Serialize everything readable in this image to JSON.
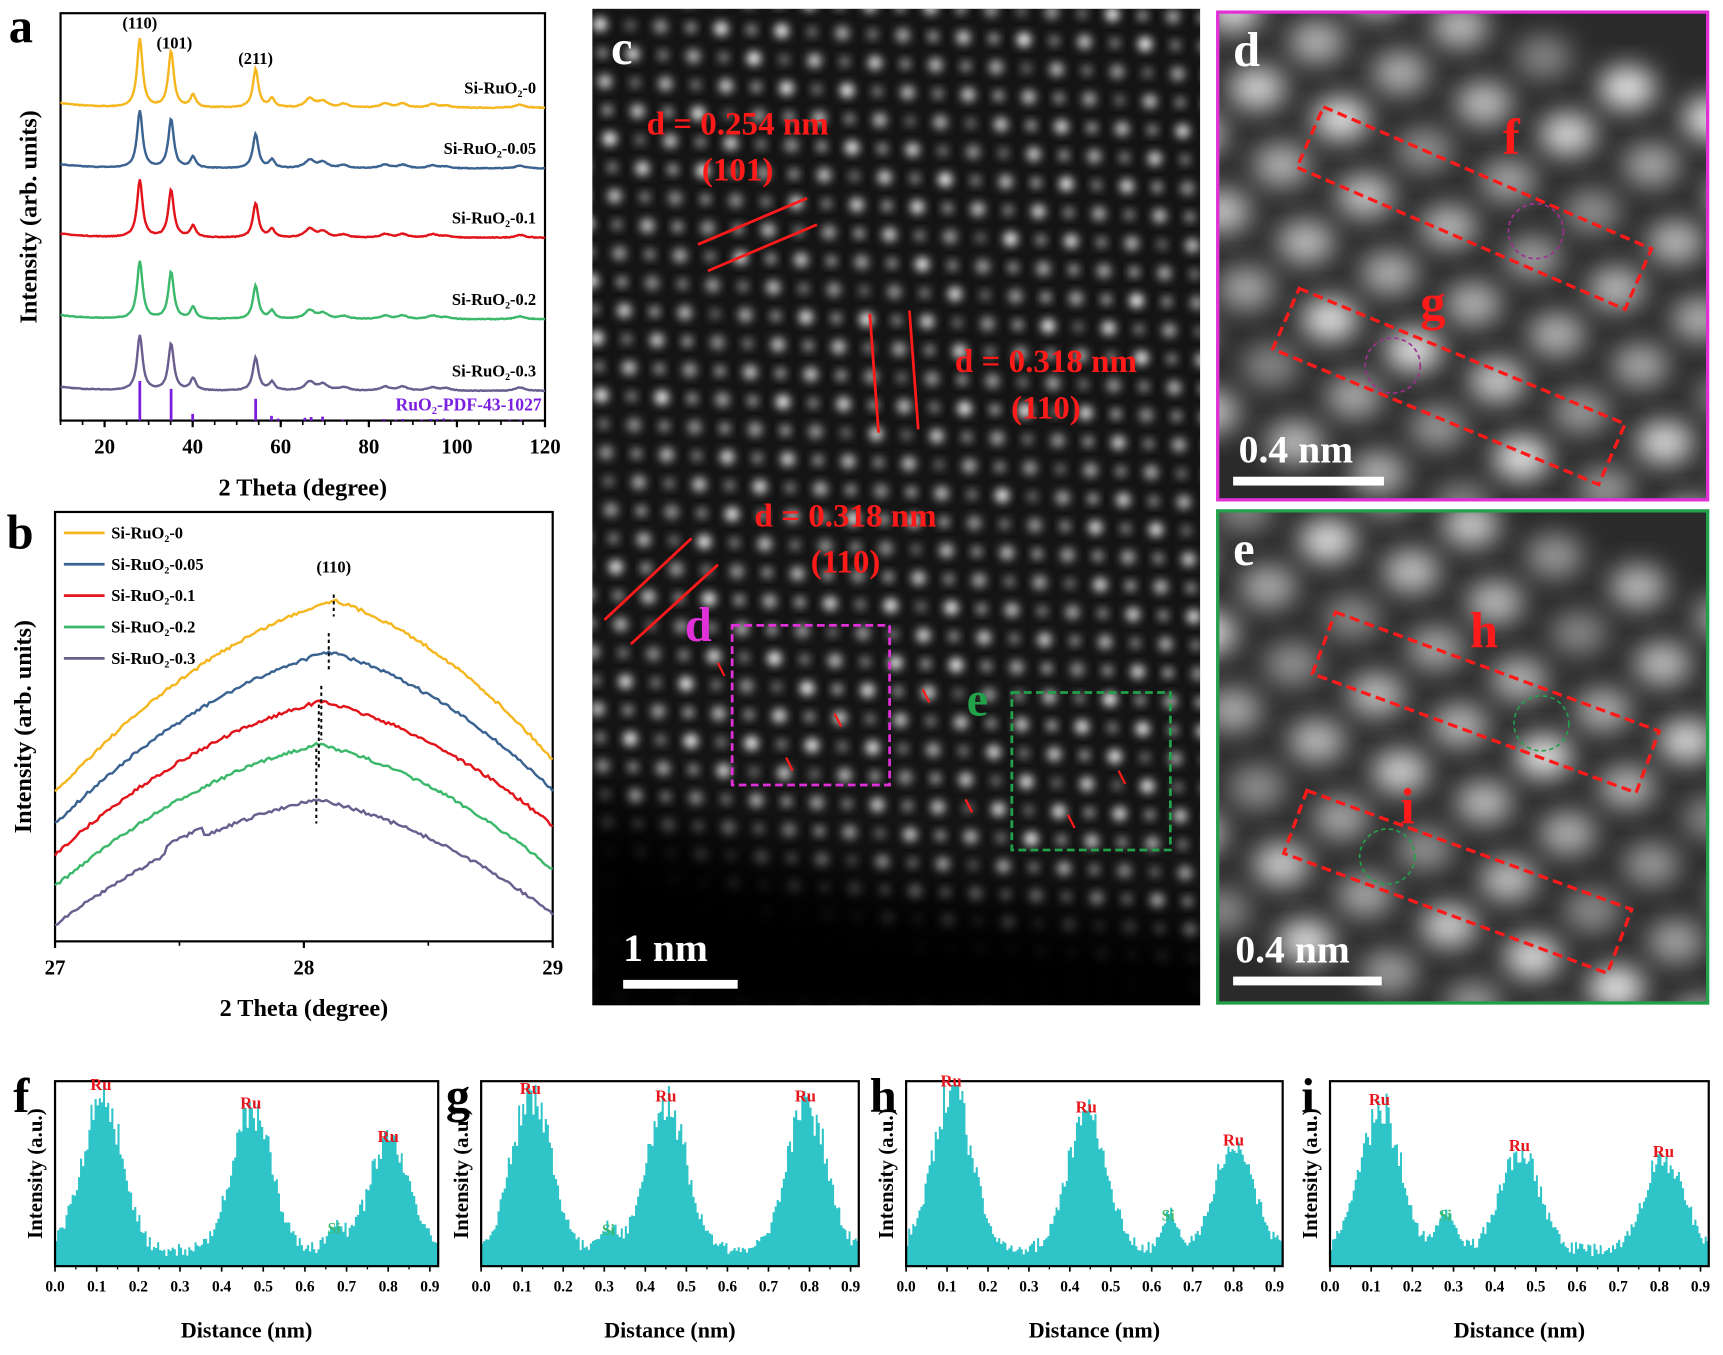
{
  "panels": {
    "a": "a",
    "b": "b",
    "c": "c",
    "d": "d",
    "e": "e",
    "f": "f",
    "g": "g",
    "h": "h",
    "i": "i"
  },
  "colors": {
    "Si-RuO2-0": "#f5b71f",
    "Si-RuO2-0.05": "#3b6391",
    "Si-RuO2-0.1": "#e2141b",
    "Si-RuO2-0.2": "#3cb86b",
    "Si-RuO2-0.3": "#6a5e8f",
    "pdf": "#7a1fe0",
    "profile": "#2ec4c8",
    "ru_label": "#e8141b",
    "si_label": "#3cb86b",
    "box_d": "#e030d8",
    "box_e": "#22a04a",
    "annot": "#ff1a1a"
  },
  "chart_data": [
    {
      "id": "a",
      "type": "line",
      "xlabel": "2 Theta (degree)",
      "ylabel": "Intensity (arb. units)",
      "xlim": [
        10,
        120
      ],
      "xticks": [
        "20",
        "40",
        "60",
        "80",
        "100",
        "120"
      ],
      "peak_labels": [
        {
          "text": "(110)",
          "x": 28.0
        },
        {
          "text": "(101)",
          "x": 35.1
        },
        {
          "text": "(211)",
          "x": 54.3
        }
      ],
      "reference": {
        "name": "RuO₂-PDF-43-1027",
        "sticks": [
          [
            28.0,
            1.0
          ],
          [
            35.1,
            0.8
          ],
          [
            40.0,
            0.17
          ],
          [
            54.3,
            0.55
          ],
          [
            57.9,
            0.12
          ],
          [
            59.4,
            0.05
          ],
          [
            65.5,
            0.07
          ],
          [
            66.9,
            0.09
          ],
          [
            69.5,
            0.1
          ],
          [
            74.0,
            0.03
          ],
          [
            83.4,
            0.04
          ],
          [
            86.1,
            0.03
          ],
          [
            87.7,
            0.04
          ],
          [
            92.0,
            0.03
          ],
          [
            94.0,
            0.04
          ],
          [
            95.5,
            0.04
          ],
          [
            97.0,
            0.05
          ],
          [
            99.0,
            0.02
          ],
          [
            112.0,
            0.02
          ],
          [
            114.5,
            0.03
          ]
        ]
      },
      "series": [
        {
          "name": "Si-RuO₂-0",
          "peaks": [
            [
              28.0,
              1.0
            ],
            [
              35.1,
              0.82
            ],
            [
              40.1,
              0.18
            ],
            [
              54.3,
              0.56
            ],
            [
              58.0,
              0.13
            ],
            [
              66.6,
              0.13
            ],
            [
              69.6,
              0.09
            ],
            [
              74.3,
              0.05
            ],
            [
              83.7,
              0.06
            ],
            [
              87.7,
              0.06
            ],
            [
              94.5,
              0.05
            ],
            [
              97.5,
              0.03
            ],
            [
              114.3,
              0.05
            ]
          ]
        },
        {
          "name": "Si-RuO₂-0.05",
          "peaks": [
            [
              28.0,
              1.0
            ],
            [
              35.1,
              0.85
            ],
            [
              40.1,
              0.19
            ],
            [
              54.3,
              0.6
            ],
            [
              58.0,
              0.14
            ],
            [
              66.6,
              0.14
            ],
            [
              69.6,
              0.1
            ],
            [
              74.3,
              0.05
            ],
            [
              83.7,
              0.06
            ],
            [
              87.7,
              0.06
            ],
            [
              94.5,
              0.05
            ],
            [
              97.5,
              0.03
            ],
            [
              114.3,
              0.05
            ]
          ]
        },
        {
          "name": "Si-RuO₂-0.1",
          "peaks": [
            [
              28.0,
              1.0
            ],
            [
              35.1,
              0.83
            ],
            [
              40.1,
              0.2
            ],
            [
              54.3,
              0.6
            ],
            [
              58.0,
              0.14
            ],
            [
              66.6,
              0.15
            ],
            [
              69.6,
              0.1
            ],
            [
              74.3,
              0.05
            ],
            [
              83.7,
              0.06
            ],
            [
              87.7,
              0.06
            ],
            [
              94.5,
              0.06
            ],
            [
              97.5,
              0.03
            ],
            [
              114.3,
              0.05
            ]
          ]
        },
        {
          "name": "Si-RuO₂-0.2",
          "peaks": [
            [
              28.0,
              1.0
            ],
            [
              35.1,
              0.82
            ],
            [
              40.1,
              0.2
            ],
            [
              54.3,
              0.58
            ],
            [
              58.0,
              0.14
            ],
            [
              66.6,
              0.15
            ],
            [
              69.6,
              0.1
            ],
            [
              74.3,
              0.05
            ],
            [
              83.7,
              0.06
            ],
            [
              87.7,
              0.06
            ],
            [
              94.5,
              0.06
            ],
            [
              97.5,
              0.03
            ],
            [
              114.3,
              0.05
            ]
          ]
        },
        {
          "name": "Si-RuO₂-0.3",
          "peaks": [
            [
              28.0,
              1.0
            ],
            [
              35.1,
              0.85
            ],
            [
              40.1,
              0.22
            ],
            [
              54.3,
              0.6
            ],
            [
              58.0,
              0.15
            ],
            [
              66.6,
              0.16
            ],
            [
              69.6,
              0.11
            ],
            [
              74.3,
              0.06
            ],
            [
              83.7,
              0.07
            ],
            [
              87.7,
              0.07
            ],
            [
              94.5,
              0.06
            ],
            [
              97.5,
              0.04
            ],
            [
              114.3,
              0.06
            ]
          ]
        }
      ]
    },
    {
      "id": "b",
      "type": "line",
      "xlabel": "2 Theta (degree)",
      "ylabel": "Intensity (arb. units)",
      "xlim": [
        27,
        29
      ],
      "xticks": [
        "27",
        "28",
        "29"
      ],
      "peak_label": "(110)",
      "legend": "top-left",
      "series": [
        {
          "name": "Si-RuO₂-0",
          "peak_center": 28.12
        },
        {
          "name": "Si-RuO₂-0.05",
          "peak_center": 28.1
        },
        {
          "name": "Si-RuO₂-0.1",
          "peak_center": 28.07
        },
        {
          "name": "Si-RuO₂-0.2",
          "peak_center": 28.06
        },
        {
          "name": "Si-RuO₂-0.3",
          "peak_center": 28.05
        }
      ]
    },
    {
      "id": "f",
      "type": "bar",
      "xlabel": "Distance (nm)",
      "ylabel": "Intensity (a.u.)",
      "xlim": [
        0,
        0.92
      ],
      "xticks": [
        "0.0",
        "0.1",
        "0.2",
        "0.3",
        "0.4",
        "0.5",
        "0.6",
        "0.7",
        "0.8",
        "0.9"
      ],
      "peaks": [
        {
          "label": "Ru",
          "x": 0.11,
          "h": 0.88
        },
        {
          "label": "Ru",
          "x": 0.47,
          "h": 0.78
        },
        {
          "label": "Si",
          "x": 0.67,
          "h": 0.13
        },
        {
          "label": "Ru",
          "x": 0.8,
          "h": 0.6
        }
      ]
    },
    {
      "id": "g",
      "type": "bar",
      "xlabel": "Distance (nm)",
      "ylabel": "Intensity (a.u.)",
      "xlim": [
        0,
        0.92
      ],
      "xticks": [
        "0.0",
        "0.1",
        "0.2",
        "0.3",
        "0.4",
        "0.5",
        "0.6",
        "0.7",
        "0.8",
        "0.9"
      ],
      "peaks": [
        {
          "label": "Ru",
          "x": 0.12,
          "h": 0.86
        },
        {
          "label": "Si",
          "x": 0.31,
          "h": 0.12
        },
        {
          "label": "Ru",
          "x": 0.45,
          "h": 0.82
        },
        {
          "label": "Ru",
          "x": 0.79,
          "h": 0.82
        }
      ]
    },
    {
      "id": "h",
      "type": "bar",
      "xlabel": "Distance (nm)",
      "ylabel": "Intensity (a.u.)",
      "xlim": [
        0,
        0.92
      ],
      "xticks": [
        "0.0",
        "0.1",
        "0.2",
        "0.3",
        "0.4",
        "0.5",
        "0.6",
        "0.7",
        "0.8",
        "0.9"
      ],
      "peaks": [
        {
          "label": "Ru",
          "x": 0.11,
          "h": 0.9
        },
        {
          "label": "Ru",
          "x": 0.44,
          "h": 0.76
        },
        {
          "label": "Si",
          "x": 0.64,
          "h": 0.2
        },
        {
          "label": "Ru",
          "x": 0.8,
          "h": 0.58
        }
      ]
    },
    {
      "id": "i",
      "type": "bar",
      "xlabel": "Distance (nm)",
      "ylabel": "Intensity (a.u.)",
      "xlim": [
        0,
        0.92
      ],
      "xticks": [
        "0.0",
        "0.1",
        "0.2",
        "0.3",
        "0.4",
        "0.5",
        "0.6",
        "0.7",
        "0.8",
        "0.9"
      ],
      "peaks": [
        {
          "label": "Ru",
          "x": 0.12,
          "h": 0.8
        },
        {
          "label": "Si",
          "x": 0.28,
          "h": 0.2
        },
        {
          "label": "Ru",
          "x": 0.46,
          "h": 0.55
        },
        {
          "label": "Ru",
          "x": 0.81,
          "h": 0.52
        }
      ]
    }
  ],
  "micrographs": {
    "c": {
      "annotations": [
        {
          "d": "d = 0.254 nm",
          "plane": "(101)"
        },
        {
          "d": "d = 0.318 nm",
          "plane": "(110)"
        },
        {
          "d": "d = 0.318 nm",
          "plane": "(110)"
        }
      ],
      "scale_bar": "1 nm",
      "box_labels": [
        "d",
        "e"
      ]
    },
    "d": {
      "box_labels": [
        "f",
        "g"
      ],
      "scale_bar": "0.4 nm"
    },
    "e": {
      "box_labels": [
        "h",
        "i"
      ],
      "scale_bar": "0.4 nm"
    }
  }
}
